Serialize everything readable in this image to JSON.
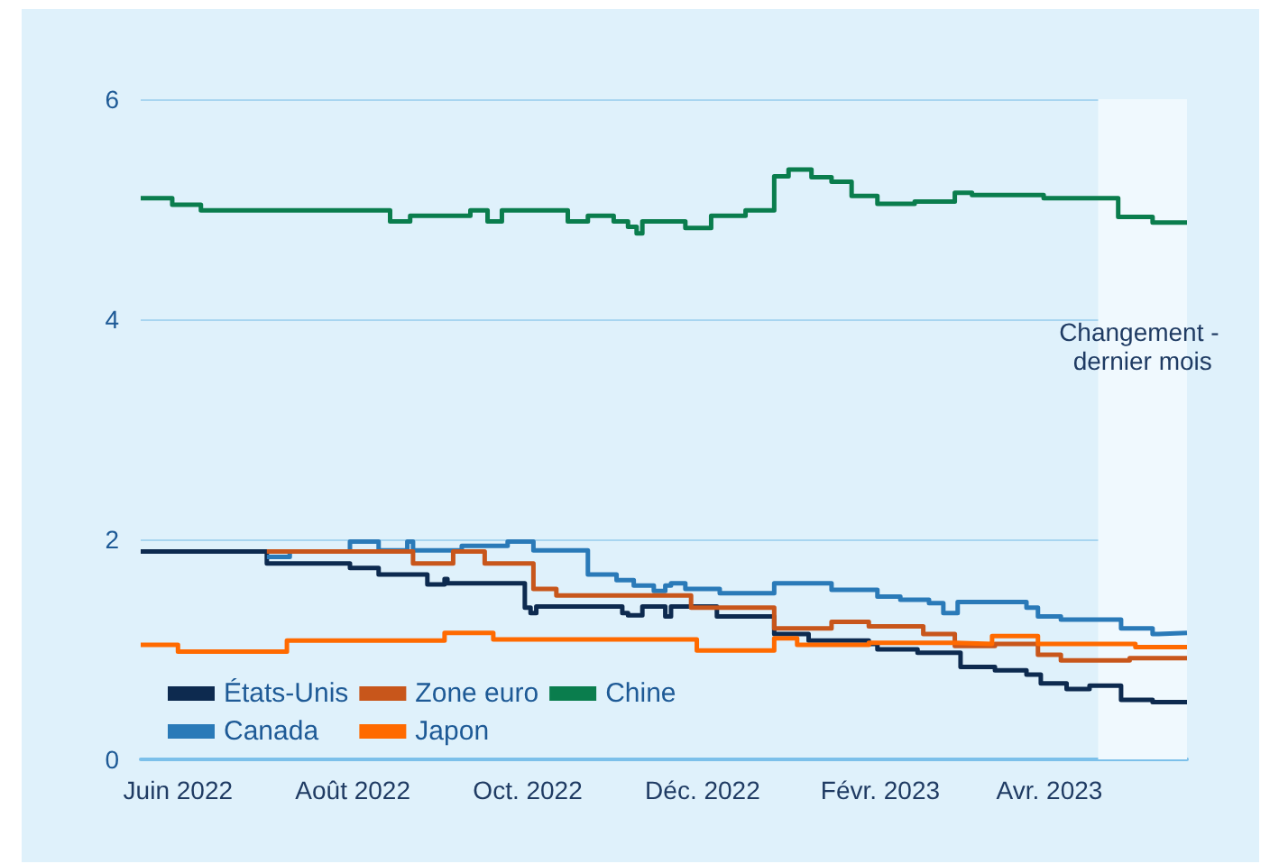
{
  "chart_data": {
    "type": "step",
    "xlim": [
      "2022-05-19",
      "2023-05-19"
    ],
    "xticks": [
      {
        "value": "2022-06-01",
        "label": "Juin 2022"
      },
      {
        "value": "2022-08-01",
        "label": "Août 2022"
      },
      {
        "value": "2022-10-01",
        "label": "Oct. 2022"
      },
      {
        "value": "2022-12-01",
        "label": "Déc. 2022"
      },
      {
        "value": "2023-02-01",
        "label": "Févr. 2023"
      },
      {
        "value": "2023-04-01",
        "label": "Avr. 2023"
      }
    ],
    "ylim": [
      0,
      6
    ],
    "yticks": [
      0,
      2,
      4,
      6
    ],
    "grid": "y",
    "legend": "bottom left",
    "bands": [
      {
        "axis": "x",
        "from": "2023-04-18",
        "to": "2023-05-19",
        "label": "Changement - dernier mois",
        "color": "#f0f9fe"
      }
    ],
    "series": [
      {
        "name": "États-Unis",
        "color": "#0d2a4f",
        "x": [
          "2022-05-19",
          "2022-07-02",
          "2022-07-31",
          "2022-08-10",
          "2022-08-27",
          "2022-09-02",
          "2022-09-03",
          "2022-09-30",
          "2022-10-02",
          "2022-10-04",
          "2022-11-03",
          "2022-11-05",
          "2022-11-10",
          "2022-11-18",
          "2022-11-20",
          "2022-12-06",
          "2022-12-26",
          "2023-01-07",
          "2023-01-28",
          "2023-01-31",
          "2023-02-14",
          "2023-03-01",
          "2023-03-13",
          "2023-03-24",
          "2023-03-29",
          "2023-04-07",
          "2023-04-15",
          "2023-04-26",
          "2023-05-07",
          "2023-05-19"
        ],
        "values": [
          1.89,
          1.78,
          1.74,
          1.68,
          1.59,
          1.64,
          1.6,
          1.38,
          1.33,
          1.39,
          1.33,
          1.31,
          1.39,
          1.3,
          1.39,
          1.3,
          1.14,
          1.08,
          1.05,
          1.0,
          0.97,
          0.84,
          0.81,
          0.77,
          0.69,
          0.64,
          0.67,
          0.54,
          0.52,
          0.53
        ]
      },
      {
        "name": "Canada",
        "color": "#2a7ab8",
        "x": [
          "2022-07-02",
          "2022-07-10",
          "2022-07-31",
          "2022-08-10",
          "2022-08-20",
          "2022-08-22",
          "2022-09-08",
          "2022-09-24",
          "2022-10-03",
          "2022-10-22",
          "2022-11-01",
          "2022-11-07",
          "2022-11-14",
          "2022-11-18",
          "2022-11-20",
          "2022-11-25",
          "2022-12-07",
          "2022-12-26",
          "2023-01-15",
          "2023-01-31",
          "2023-02-08",
          "2023-02-18",
          "2023-02-23",
          "2023-02-28",
          "2023-03-24",
          "2023-03-28",
          "2023-04-05",
          "2023-04-26",
          "2023-05-07",
          "2023-05-09",
          "2023-05-19"
        ],
        "values": [
          1.84,
          1.89,
          1.98,
          1.9,
          1.98,
          1.9,
          1.94,
          1.98,
          1.9,
          1.68,
          1.63,
          1.58,
          1.53,
          1.58,
          1.6,
          1.55,
          1.51,
          1.6,
          1.54,
          1.48,
          1.45,
          1.42,
          1.33,
          1.43,
          1.38,
          1.3,
          1.27,
          1.19,
          1.14,
          1.15,
          1.15
        ]
      },
      {
        "name": "Zone euro",
        "color": "#c8561b",
        "x": [
          "2022-07-02",
          "2022-08-22",
          "2022-09-05",
          "2022-09-16",
          "2022-10-03",
          "2022-10-11",
          "2022-11-27",
          "2022-12-26",
          "2023-01-15",
          "2023-01-28",
          "2023-02-16",
          "2023-02-27",
          "2023-03-13",
          "2023-03-28",
          "2023-04-05",
          "2023-04-29",
          "2023-05-19"
        ],
        "values": [
          1.89,
          1.78,
          1.89,
          1.78,
          1.55,
          1.49,
          1.38,
          1.19,
          1.25,
          1.21,
          1.14,
          1.03,
          1.05,
          0.95,
          0.9,
          0.92,
          0.92
        ]
      },
      {
        "name": "Japon",
        "color": "#ff6a00",
        "x": [
          "2022-05-19",
          "2022-06-01",
          "2022-07-09",
          "2022-09-02",
          "2022-09-19",
          "2022-11-29",
          "2022-12-26",
          "2023-01-03",
          "2023-01-28",
          "2023-02-27",
          "2023-03-12",
          "2023-03-28",
          "2023-05-01",
          "2023-05-19"
        ],
        "values": [
          1.04,
          0.98,
          1.08,
          1.15,
          1.09,
          0.99,
          1.1,
          1.04,
          1.06,
          1.05,
          1.12,
          1.05,
          1.02,
          1.01
        ]
      },
      {
        "name": "Chine",
        "color": "#0a7d4d",
        "x": [
          "2022-05-19",
          "2022-05-30",
          "2022-06-09",
          "2022-08-14",
          "2022-08-21",
          "2022-09-11",
          "2022-09-17",
          "2022-09-22",
          "2022-10-15",
          "2022-10-22",
          "2022-10-31",
          "2022-11-05",
          "2022-11-08",
          "2022-11-10",
          "2022-11-25",
          "2022-12-04",
          "2022-12-16",
          "2022-12-26",
          "2022-12-31",
          "2023-01-08",
          "2023-01-15",
          "2023-01-22",
          "2023-01-31",
          "2023-02-13",
          "2023-02-27",
          "2023-03-05",
          "2023-03-30",
          "2023-04-25",
          "2023-05-07",
          "2023-05-19"
        ],
        "values": [
          5.1,
          5.04,
          4.99,
          4.89,
          4.94,
          4.99,
          4.89,
          4.99,
          4.89,
          4.94,
          4.89,
          4.84,
          4.78,
          4.89,
          4.83,
          4.94,
          4.99,
          5.3,
          5.36,
          5.29,
          5.25,
          5.12,
          5.05,
          5.07,
          5.15,
          5.13,
          5.1,
          4.93,
          4.88,
          4.88
        ]
      }
    ]
  }
}
